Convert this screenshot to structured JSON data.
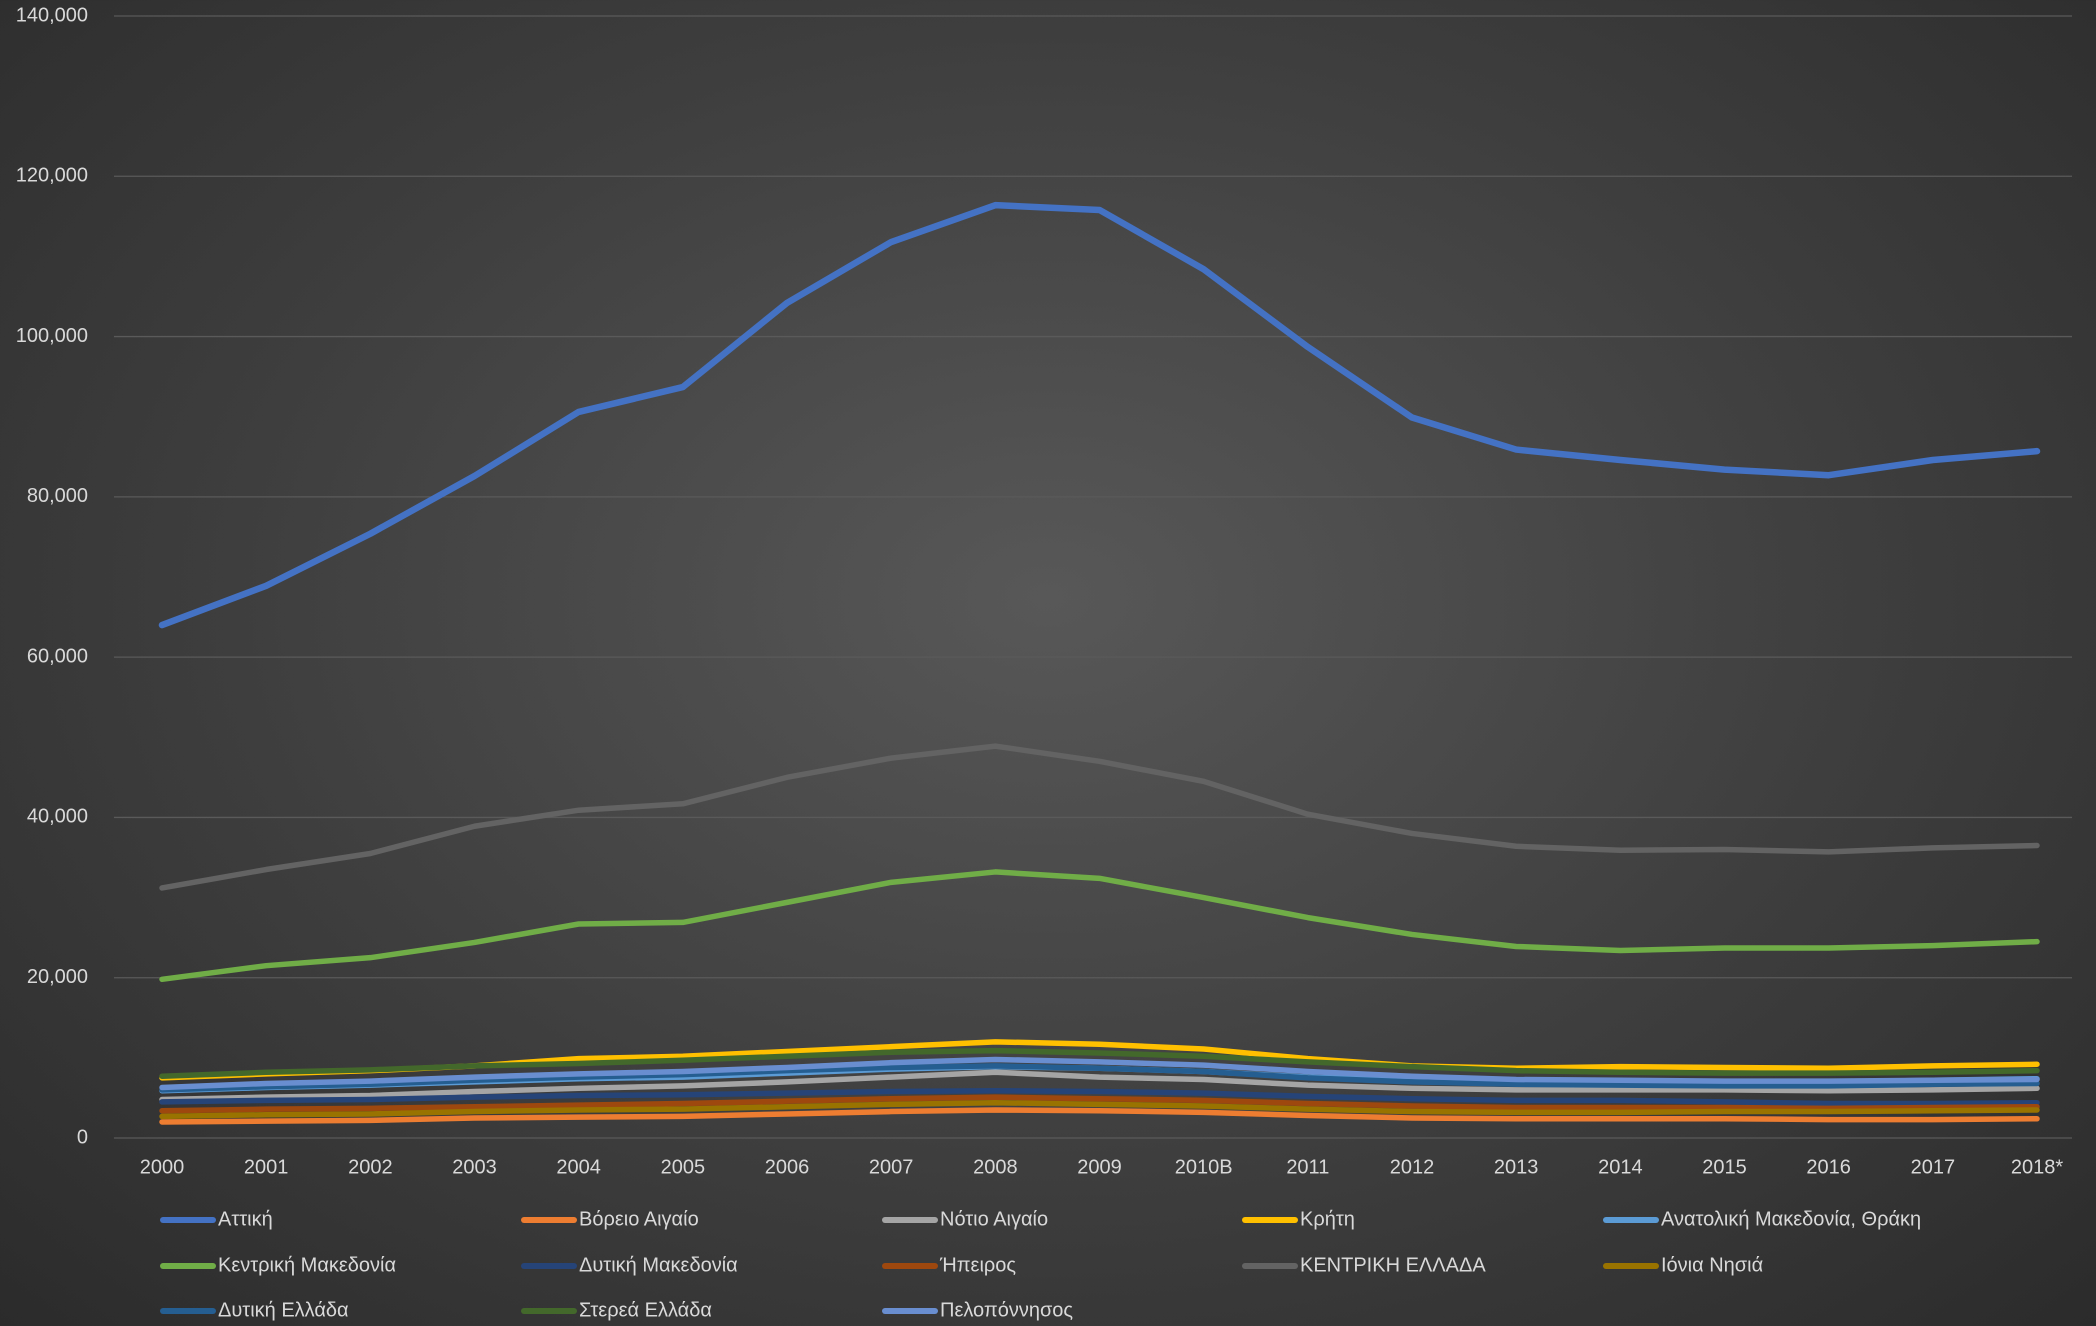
{
  "chart_data": {
    "type": "line",
    "categories": [
      "2000",
      "2001",
      "2002",
      "2003",
      "2004",
      "2005",
      "2006",
      "2007",
      "2008",
      "2009",
      "2010Β",
      "2011",
      "2012",
      "2013",
      "2014",
      "2015",
      "2016",
      "2017",
      "2018*"
    ],
    "ylim": [
      0,
      140000
    ],
    "yticks": [
      {
        "value": 0,
        "label": "0"
      },
      {
        "value": 20000,
        "label": "20,000"
      },
      {
        "value": 40000,
        "label": "40,000"
      },
      {
        "value": 60000,
        "label": "60,000"
      },
      {
        "value": 80000,
        "label": "80,000"
      },
      {
        "value": 100000,
        "label": "100,000"
      },
      {
        "value": 120000,
        "label": "120,000"
      },
      {
        "value": 140000,
        "label": "140,000"
      }
    ],
    "grid": true,
    "legend": "bottom",
    "series": [
      {
        "name": "Αττική",
        "color": "#4472c4",
        "values": [
          64000,
          68900,
          75400,
          82600,
          90600,
          93700,
          104200,
          111800,
          116400,
          115800,
          108400,
          98700,
          89900,
          85900,
          84600,
          83400,
          82700,
          84600,
          85700
        ]
      },
      {
        "name": "Βόρειο Αιγαίο",
        "color": "#ed7d31",
        "values": [
          2000,
          2100,
          2200,
          2500,
          2600,
          2700,
          3000,
          3300,
          3500,
          3400,
          3200,
          2800,
          2500,
          2400,
          2400,
          2400,
          2300,
          2300,
          2400
        ]
      },
      {
        "name": "Νότιο Αιγαίο",
        "color": "#a5a5a5",
        "values": [
          4800,
          5100,
          5300,
          5800,
          6200,
          6500,
          7000,
          7600,
          8200,
          7600,
          7300,
          6600,
          6200,
          6000,
          6000,
          6000,
          5900,
          6000,
          6200
        ]
      },
      {
        "name": "Κρήτη",
        "color": "#ffc000",
        "values": [
          7500,
          8000,
          8400,
          9000,
          9900,
          10200,
          10800,
          11400,
          12000,
          11700,
          11100,
          9900,
          9000,
          8700,
          8900,
          8800,
          8700,
          9000,
          9200
        ]
      },
      {
        "name": "Ανατολική Μακεδονία, Θράκη",
        "color": "#5b9bd5",
        "values": [
          5900,
          6300,
          6600,
          7000,
          7400,
          7600,
          8100,
          8600,
          8900,
          8700,
          8300,
          7600,
          7200,
          7000,
          7000,
          7000,
          7000,
          7200,
          7400
        ]
      },
      {
        "name": "Κεντρική Μακεδονία",
        "color": "#70ad47",
        "values": [
          19800,
          21500,
          22500,
          24400,
          26700,
          26900,
          29400,
          31900,
          33200,
          32400,
          30000,
          27500,
          25400,
          23900,
          23400,
          23700,
          23700,
          24000,
          24500
        ]
      },
      {
        "name": "Δυτική Μακεδονία",
        "color": "#264478",
        "values": [
          4500,
          4700,
          4800,
          5100,
          5300,
          5400,
          5600,
          5800,
          5900,
          5800,
          5600,
          5200,
          4900,
          4700,
          4700,
          4500,
          4300,
          4300,
          4400
        ]
      },
      {
        "name": "Ήπειρος",
        "color": "#9e480e",
        "values": [
          3400,
          3600,
          3700,
          3900,
          4100,
          4300,
          4600,
          4900,
          5100,
          4900,
          4700,
          4300,
          4000,
          3800,
          3800,
          3800,
          3700,
          3800,
          3900
        ]
      },
      {
        "name": "ΚΕΝΤΡΙΚΗ ΕΛΛΑΔΑ",
        "color": "#636363",
        "values": [
          31200,
          33500,
          35500,
          38900,
          40900,
          41700,
          45000,
          47400,
          48900,
          47000,
          44500,
          40400,
          38000,
          36400,
          35900,
          36000,
          35700,
          36200,
          36500
        ]
      },
      {
        "name": "Ιόνια Νησιά",
        "color": "#997300",
        "values": [
          2700,
          2900,
          3000,
          3300,
          3500,
          3600,
          3900,
          4200,
          4400,
          4200,
          4000,
          3600,
          3300,
          3200,
          3200,
          3300,
          3300,
          3400,
          3500
        ]
      },
      {
        "name": "Δυτική Ελλάδα",
        "color": "#255e91",
        "values": [
          6000,
          6400,
          6700,
          7200,
          7600,
          7900,
          8400,
          8800,
          9000,
          8700,
          8300,
          7500,
          7000,
          6700,
          6600,
          6500,
          6500,
          6700,
          6800
        ]
      },
      {
        "name": "Στερεά Ελλάδα",
        "color": "#43682b",
        "values": [
          7700,
          8200,
          8500,
          9000,
          9300,
          9700,
          10200,
          10700,
          10900,
          10600,
          10200,
          9500,
          8900,
          8400,
          8200,
          8100,
          8100,
          8200,
          8400
        ]
      },
      {
        "name": "Πελοπόννησος",
        "color": "#698ed0",
        "values": [
          6300,
          6800,
          7100,
          7600,
          8000,
          8300,
          8800,
          9400,
          9800,
          9500,
          9100,
          8300,
          7700,
          7300,
          7200,
          7100,
          7100,
          7200,
          7300
        ]
      }
    ]
  }
}
